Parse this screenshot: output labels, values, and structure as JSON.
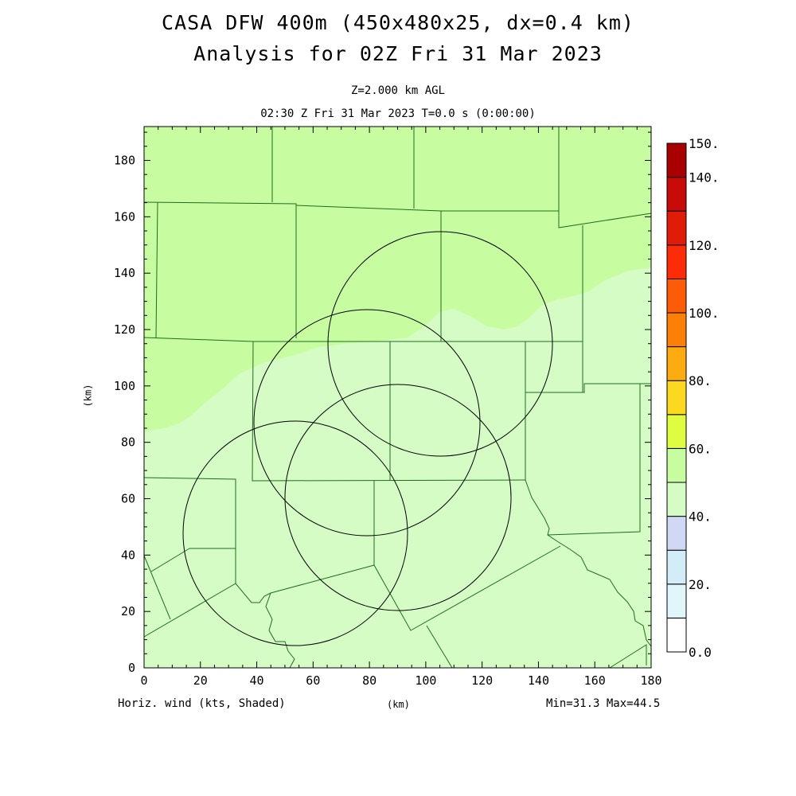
{
  "header": {
    "title_line1": "CASA DFW 400m (450x480x25, dx=0.4 km)",
    "title_line2": "Analysis for 02Z Fri 31 Mar 2023",
    "level": "Z=2.000 km AGL",
    "time": "02:30 Z Fri 31 Mar 2023   T=0.0 s (0:00:00)"
  },
  "axes": {
    "x_label": "(km)",
    "y_label": "(km)",
    "x_ticks": [
      "0",
      "20",
      "40",
      "60",
      "80",
      "100",
      "120",
      "140",
      "160",
      "180"
    ],
    "y_ticks": [
      "0",
      "20",
      "40",
      "60",
      "80",
      "100",
      "120",
      "140",
      "160",
      "180"
    ],
    "x_range": [
      0,
      180
    ],
    "y_range": [
      0,
      192
    ]
  },
  "footer": {
    "field": "Horiz. wind (kts, Shaded)",
    "minmax": "Min=31.3 Max=44.5"
  },
  "colorbar": {
    "labels": [
      "150.",
      "140.",
      "120.",
      "100.",
      "80.",
      "60.",
      "40.",
      "20.",
      "0.0"
    ],
    "colors": [
      "#ffffff",
      "#e0f6fa",
      "#d2ecf8",
      "#d0d8f4",
      "#d4fcc4",
      "#c8fca0",
      "#e0fc40",
      "#fcd820",
      "#fcac10",
      "#fc8008",
      "#fc5c08",
      "#fc2c08",
      "#e01c08",
      "#c80a08",
      "#a80000"
    ]
  },
  "map": {
    "field_colors": {
      "light": "#d4fcc4",
      "dark": "#c8fca0"
    },
    "border_color": "#1f6e1f",
    "radar_ring_color": "#000000"
  }
}
